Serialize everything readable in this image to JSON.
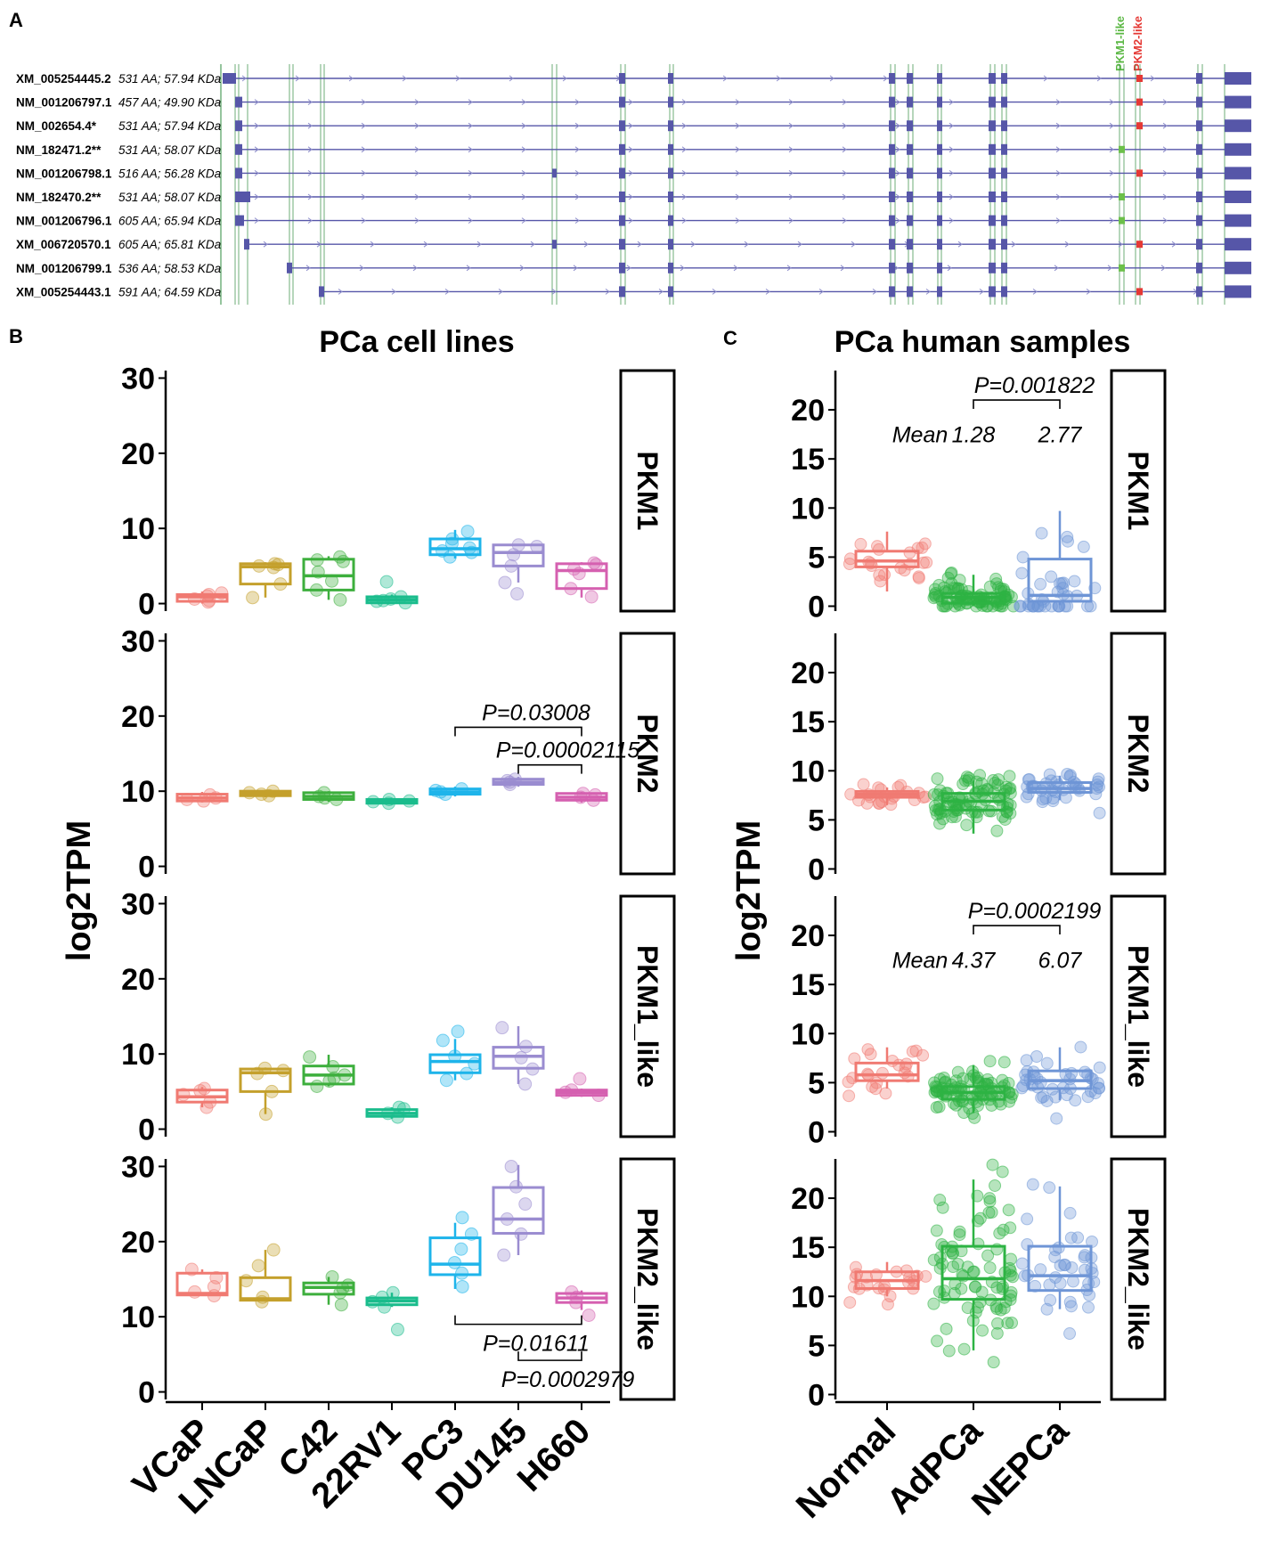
{
  "panel_labels": {
    "a": "A",
    "b": "B",
    "c": "C"
  },
  "colors": {
    "VCaP": "#F07A72",
    "LNCaP": "#C4A02C",
    "C42": "#3DAF3D",
    "22RV1": "#1ABC8C",
    "PC3": "#1EB4EA",
    "DU145": "#9A8CD0",
    "H660": "#D560B0",
    "Normal": "#F07A72",
    "AdPCa": "#2DB343",
    "NEPCa": "#6E95D6",
    "exon": "#5656A8",
    "pkm1_like": "#6CC04A",
    "pkm2_like": "#E53935"
  },
  "panel_a": {
    "exon_labels": {
      "pkm1": "PKM1-like",
      "pkm2": "PKM2-like"
    },
    "transcripts": [
      {
        "id": "XM_005254445.2",
        "info": "531 AA; 57.94 KDa"
      },
      {
        "id": "NM_001206797.1",
        "info": "457 AA; 49.90 KDa"
      },
      {
        "id": "NM_002654.4*",
        "info": "531 AA; 57.94 KDa"
      },
      {
        "id": "NM_182471.2**",
        "info": "531 AA; 58.07 KDa"
      },
      {
        "id": "NM_001206798.1",
        "info": "516 AA; 56.28 KDa"
      },
      {
        "id": "NM_182470.2**",
        "info": "531 AA; 58.07 KDa"
      },
      {
        "id": "NM_001206796.1",
        "info": "605 AA; 65.94 KDa"
      },
      {
        "id": "XM_006720570.1",
        "info": "605 AA; 65.81 KDa"
      },
      {
        "id": "NM_001206799.1",
        "info": "536 AA; 58.53 KDa"
      },
      {
        "id": "XM_005254443.1",
        "info": "591 AA; 64.59 KDa"
      }
    ]
  },
  "chart_data": [
    {
      "type": "boxplot",
      "title": "PCa cell lines",
      "ylabel": "log2TPM",
      "xlabel": "",
      "categories": [
        "VCaP",
        "LNCaP",
        "C42",
        "22RV1",
        "PC3",
        "DU145",
        "H660"
      ],
      "ylim": [
        -1,
        31
      ],
      "yticks": [
        0,
        10,
        20,
        30
      ],
      "facets": [
        {
          "name": "PKM1",
          "boxes": [
            {
              "q1": 0.3,
              "med": 0.9,
              "q3": 1.2,
              "lo": 0,
              "hi": 1.6,
              "pts": [
                0.2,
                0.6,
                1.0,
                1.4,
                0.4,
                1.2
              ]
            },
            {
              "q1": 2.6,
              "med": 4.9,
              "q3": 5.3,
              "lo": 0.8,
              "hi": 5.5,
              "pts": [
                0.8,
                2.6,
                4.8,
                5.2,
                5.3,
                5.0
              ]
            },
            {
              "q1": 1.8,
              "med": 3.7,
              "q3": 5.9,
              "lo": 0.5,
              "hi": 6.3,
              "pts": [
                0.5,
                1.8,
                3.0,
                4.2,
                5.8,
                6.2,
                5.6
              ]
            },
            {
              "q1": 0.1,
              "med": 0.5,
              "q3": 0.9,
              "lo": 0,
              "hi": 1.2,
              "pts": [
                0.1,
                0.3,
                0.6,
                0.9,
                2.9,
                0.4
              ]
            },
            {
              "q1": 6.5,
              "med": 7.3,
              "q3": 8.6,
              "lo": 6.0,
              "hi": 9.8,
              "pts": [
                6.2,
                6.8,
                7.4,
                8.0,
                8.6,
                9.6,
                7.0
              ]
            },
            {
              "q1": 5.0,
              "med": 6.8,
              "q3": 7.8,
              "lo": 2.8,
              "hi": 7.9,
              "pts": [
                2.8,
                5.0,
                6.5,
                7.8,
                7.6,
                1.3
              ]
            },
            {
              "q1": 2.0,
              "med": 4.4,
              "q3": 5.3,
              "lo": 0.8,
              "hi": 5.5,
              "pts": [
                0.9,
                2.0,
                4.0,
                5.2,
                5.4,
                4.6
              ]
            }
          ]
        },
        {
          "name": "PKM2",
          "boxes": [
            {
              "q1": 8.7,
              "med": 9.1,
              "q3": 9.6,
              "lo": 8.5,
              "hi": 9.9,
              "pts": [
                8.7,
                9.1,
                9.5,
                8.9
              ]
            },
            {
              "q1": 9.4,
              "med": 9.7,
              "q3": 10.0,
              "lo": 9.2,
              "hi": 10.1,
              "pts": [
                9.4,
                9.8,
                10.0,
                9.6
              ]
            },
            {
              "q1": 8.9,
              "med": 9.3,
              "q3": 9.8,
              "lo": 8.6,
              "hi": 10.0,
              "pts": [
                8.9,
                9.3,
                9.8,
                9.1
              ]
            },
            {
              "q1": 8.4,
              "med": 8.7,
              "q3": 8.9,
              "lo": 8.2,
              "hi": 9.1,
              "pts": [
                8.4,
                8.7,
                8.9,
                8.6
              ]
            },
            {
              "q1": 9.6,
              "med": 9.9,
              "q3": 10.3,
              "lo": 9.3,
              "hi": 10.6,
              "pts": [
                9.6,
                9.9,
                10.3,
                10.1
              ]
            },
            {
              "q1": 10.9,
              "med": 11.2,
              "q3": 11.6,
              "lo": 10.6,
              "hi": 11.9,
              "pts": [
                10.9,
                11.2,
                11.6,
                11.4
              ]
            },
            {
              "q1": 8.8,
              "med": 9.2,
              "q3": 9.7,
              "lo": 8.5,
              "hi": 9.9,
              "pts": [
                8.8,
                9.2,
                9.7,
                9.5
              ]
            }
          ],
          "annotations": [
            {
              "from": 4,
              "to": 6,
              "y": 18.5,
              "label": "P=0.03008"
            },
            {
              "from": 5,
              "to": 6,
              "y": 13.5,
              "label": "P=0.00002115"
            }
          ]
        },
        {
          "name": "PKM1_like",
          "boxes": [
            {
              "q1": 3.6,
              "med": 4.3,
              "q3": 5.2,
              "lo": 2.9,
              "hi": 5.6,
              "pts": [
                2.9,
                3.6,
                4.6,
                5.4,
                5.1
              ]
            },
            {
              "q1": 5.0,
              "med": 7.5,
              "q3": 8.0,
              "lo": 2.0,
              "hi": 8.2,
              "pts": [
                2.0,
                5.0,
                7.4,
                8.1,
                7.8
              ]
            },
            {
              "q1": 6.0,
              "med": 7.2,
              "q3": 8.4,
              "lo": 5.7,
              "hi": 9.9,
              "pts": [
                5.7,
                6.4,
                7.2,
                8.3,
                9.6,
                6.8
              ]
            },
            {
              "q1": 1.7,
              "med": 2.1,
              "q3": 2.6,
              "lo": 1.4,
              "hi": 2.9,
              "pts": [
                1.6,
                2.1,
                2.7,
                2.9
              ]
            },
            {
              "q1": 7.5,
              "med": 9.0,
              "q3": 9.9,
              "lo": 6.5,
              "hi": 12.0,
              "pts": [
                6.5,
                7.4,
                8.7,
                9.7,
                11.8,
                13.0
              ]
            },
            {
              "q1": 8.1,
              "med": 9.7,
              "q3": 10.9,
              "lo": 6.0,
              "hi": 13.7,
              "pts": [
                6.0,
                8.0,
                9.5,
                11.0,
                13.5
              ]
            },
            {
              "q1": 4.5,
              "med": 4.9,
              "q3": 5.2,
              "lo": 4.3,
              "hi": 5.4,
              "pts": [
                4.5,
                4.9,
                5.2,
                6.7
              ]
            }
          ]
        },
        {
          "name": "PKM2_like",
          "boxes": [
            {
              "q1": 12.9,
              "med": 13.1,
              "q3": 15.8,
              "lo": 12.8,
              "hi": 16.3,
              "pts": [
                12.8,
                13.3,
                15.2,
                16.3,
                14.0
              ]
            },
            {
              "q1": 12.2,
              "med": 12.4,
              "q3": 15.2,
              "lo": 12.0,
              "hi": 18.9,
              "pts": [
                12.0,
                12.6,
                14.8,
                16.8,
                18.9
              ]
            },
            {
              "q1": 13.0,
              "med": 13.9,
              "q3": 14.5,
              "lo": 11.6,
              "hi": 15.3,
              "pts": [
                11.6,
                13.2,
                14.2,
                15.3,
                13.8
              ]
            },
            {
              "q1": 11.6,
              "med": 12.1,
              "q3": 12.5,
              "lo": 11.3,
              "hi": 13.2,
              "pts": [
                11.3,
                12.0,
                12.6,
                13.2,
                8.3
              ]
            },
            {
              "q1": 15.6,
              "med": 17.0,
              "q3": 20.5,
              "lo": 13.7,
              "hi": 22.5,
              "pts": [
                14.0,
                15.8,
                17.2,
                19.0,
                21.0,
                23.2
              ]
            },
            {
              "q1": 21.1,
              "med": 23.0,
              "q3": 27.2,
              "lo": 18.2,
              "hi": 30.2,
              "pts": [
                18.2,
                21.0,
                23.0,
                25.0,
                27.3,
                30.0
              ]
            },
            {
              "q1": 11.9,
              "med": 12.5,
              "q3": 13.1,
              "lo": 10.9,
              "hi": 13.5,
              "pts": [
                10.2,
                11.9,
                12.6,
                13.3
              ]
            }
          ],
          "annotations": [
            {
              "from": 4,
              "to": 6,
              "y": 9.0,
              "label": "P=0.01611",
              "below": true
            },
            {
              "from": 5,
              "to": 6,
              "y": 4.2,
              "label": "P=0.0002979",
              "below": true
            }
          ]
        }
      ]
    },
    {
      "type": "boxplot",
      "title": "PCa human samples",
      "ylabel": "log2TPM",
      "xlabel": "",
      "categories": [
        "Normal",
        "AdPCa",
        "NEPCa"
      ],
      "ylim": [
        -0.5,
        24
      ],
      "yticks": [
        0,
        5,
        10,
        15,
        20
      ],
      "facets": [
        {
          "name": "PKM1",
          "boxes": [
            {
              "q1": 4.0,
              "med": 4.6,
              "q3": 5.6,
              "lo": 1.5,
              "hi": 7.6
            },
            {
              "q1": 0.3,
              "med": 0.9,
              "q3": 1.3,
              "lo": 0,
              "hi": 3.2
            },
            {
              "q1": 0.5,
              "med": 1.1,
              "q3": 4.8,
              "lo": 0.1,
              "hi": 9.7
            }
          ],
          "means": {
            "label": "Mean",
            "values": [
              "1.28",
              "2.77"
            ]
          },
          "annotations": [
            {
              "from": 1,
              "to": 2,
              "y": 21,
              "label": "P=0.001822"
            }
          ]
        },
        {
          "name": "PKM2",
          "boxes": [
            {
              "q1": 7.3,
              "med": 7.6,
              "q3": 7.9,
              "lo": 6.5,
              "hi": 8.3
            },
            {
              "q1": 6.0,
              "med": 6.9,
              "q3": 7.7,
              "lo": 3.6,
              "hi": 9.0
            },
            {
              "q1": 7.8,
              "med": 8.2,
              "q3": 8.8,
              "lo": 7.0,
              "hi": 9.5
            }
          ]
        },
        {
          "name": "PKM1_like",
          "boxes": [
            {
              "q1": 5.2,
              "med": 5.8,
              "q3": 7.0,
              "lo": 4.4,
              "hi": 8.6
            },
            {
              "q1": 3.3,
              "med": 4.0,
              "q3": 4.6,
              "lo": 1.9,
              "hi": 6.8
            },
            {
              "q1": 4.4,
              "med": 5.2,
              "q3": 6.2,
              "lo": 3.2,
              "hi": 8.6
            }
          ],
          "means": {
            "label": "Mean",
            "values": [
              "4.37",
              "6.07"
            ]
          },
          "annotations": [
            {
              "from": 1,
              "to": 2,
              "y": 21,
              "label": "P=0.0002199"
            }
          ]
        },
        {
          "name": "PKM2_like",
          "boxes": [
            {
              "q1": 10.8,
              "med": 11.6,
              "q3": 12.5,
              "lo": 10.0,
              "hi": 13.5
            },
            {
              "q1": 9.7,
              "med": 11.8,
              "q3": 15.1,
              "lo": 4.5,
              "hi": 21.9
            },
            {
              "q1": 10.6,
              "med": 12.1,
              "q3": 15.1,
              "lo": 8.7,
              "hi": 21.2
            }
          ]
        }
      ]
    }
  ]
}
